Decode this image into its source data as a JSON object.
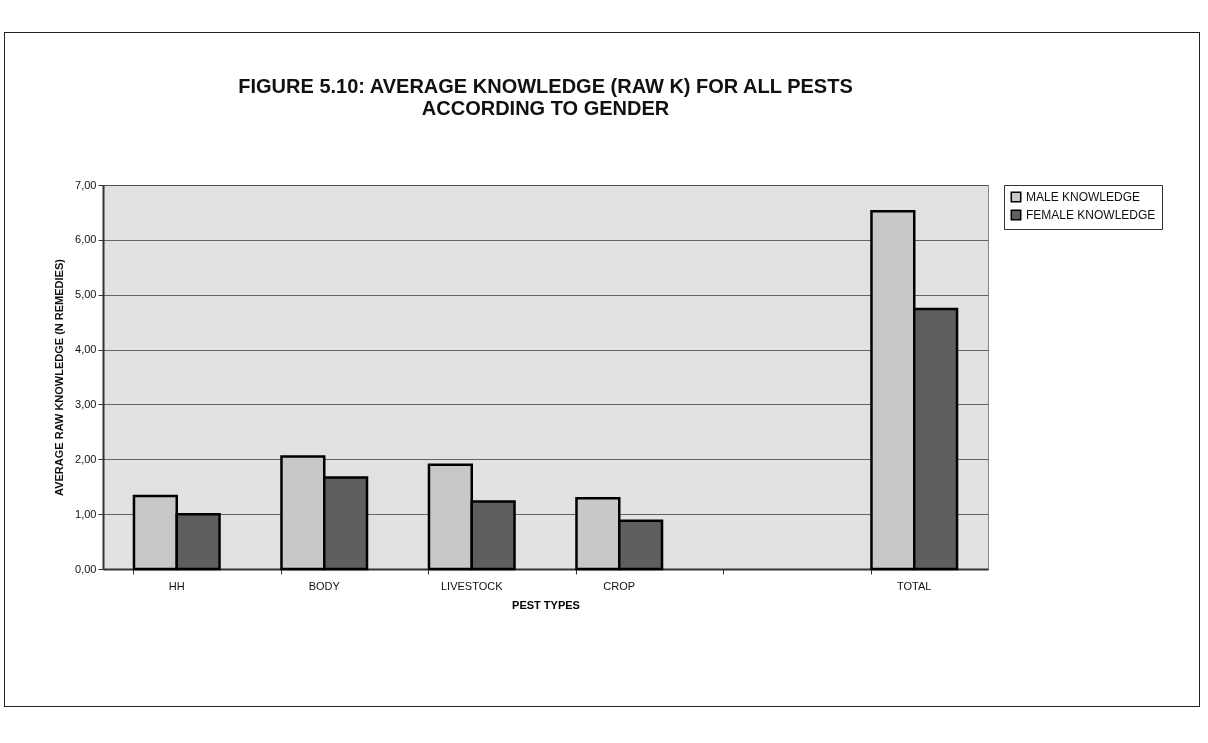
{
  "chart_data": {
    "type": "bar",
    "title": [
      "FIGURE 5.10: AVERAGE KNOWLEDGE (RAW K) FOR ALL PESTS",
      "ACCORDING TO GENDER"
    ],
    "xlabel": "PEST TYPES",
    "ylabel": "AVERAGE RAW KNOWLEDGE (N REMEDIES)",
    "categories": [
      "HH",
      "BODY",
      "LIVESTOCK",
      "CROP",
      null,
      "TOTAL"
    ],
    "series": [
      {
        "name": "MALE KNOWLEDGE",
        "color": "#c8c8c8",
        "values": [
          1.33,
          2.05,
          1.9,
          1.29,
          null,
          6.52
        ]
      },
      {
        "name": "FEMALE KNOWLEDGE",
        "color": "#5e5e5e",
        "values": [
          1.0,
          1.67,
          1.23,
          0.88,
          null,
          4.74
        ]
      }
    ],
    "ylim": [
      0,
      7
    ],
    "yticks": [
      {
        "value": 0,
        "label": "0,00"
      },
      {
        "value": 1,
        "label": "1,00"
      },
      {
        "value": 2,
        "label": "2,00"
      },
      {
        "value": 3,
        "label": "3,00"
      },
      {
        "value": 4,
        "label": "4,00"
      },
      {
        "value": 5,
        "label": "5,00"
      },
      {
        "value": 6,
        "label": "6,00"
      },
      {
        "value": 7,
        "label": "7,00"
      }
    ],
    "grid": "y",
    "legend": "right"
  }
}
